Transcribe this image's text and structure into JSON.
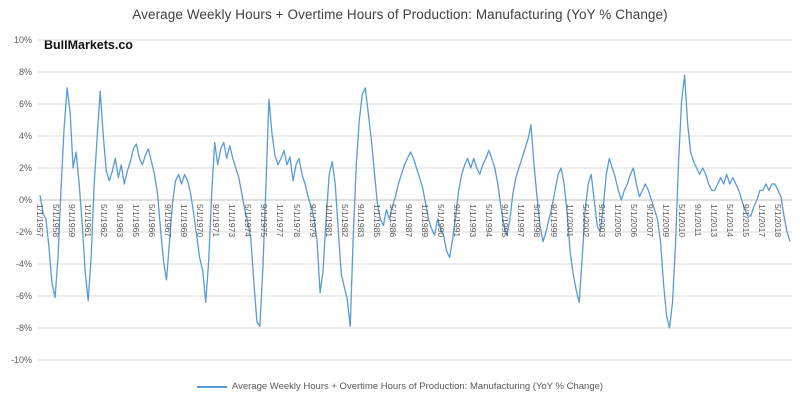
{
  "title": "Average Weekly Hours + Overtime Hours of Production: Manufacturing (YoY % Change)",
  "watermark": "BullMarkets.co",
  "legend": {
    "label": "Average Weekly Hours + Overtime Hours of Production: Manufacturing (YoY % Change)"
  },
  "colors": {
    "line": "#5B9BD5",
    "grid": "#D9D9D9",
    "axis": "#BFBFBF",
    "tick_text": "#595959",
    "title_text": "#404040"
  },
  "chart_data": {
    "type": "line",
    "title": "Average Weekly Hours + Overtime Hours of Production: Manufacturing (YoY % Change)",
    "xlabel": "",
    "ylabel": "",
    "grid": true,
    "legend_position": "bottom",
    "ylim": [
      -10,
      10
    ],
    "xlim": [
      1957.0,
      2019.25
    ],
    "y_ticks": [
      10,
      8,
      6,
      4,
      2,
      0,
      -2,
      -4,
      -6,
      -8,
      -10
    ],
    "y_tick_suffix": "%",
    "x_tick_interval_months": 16,
    "x_tick_labels": [
      "1/1/1957",
      "5/1/1958",
      "9/1/1959",
      "1/1/1961",
      "5/1/1962",
      "9/1/1963",
      "1/1/1965",
      "5/1/1966",
      "9/1/1967",
      "1/1/1969",
      "5/1/1970",
      "9/1/1971",
      "1/1/1973",
      "5/1/1974",
      "9/1/1975",
      "1/1/1977",
      "5/1/1978",
      "9/1/1979",
      "1/1/1981",
      "5/1/1982",
      "9/1/1983",
      "1/1/1985",
      "5/1/1986",
      "9/1/1987",
      "1/1/1989",
      "5/1/1990",
      "9/1/1991",
      "1/1/1993",
      "5/1/1994",
      "9/1/1995",
      "1/1/1997",
      "5/1/1998",
      "9/1/1999",
      "1/1/2001",
      "5/1/2002",
      "9/1/2003",
      "1/1/2005",
      "5/1/2006",
      "9/1/2007",
      "1/1/2009",
      "5/1/2010",
      "9/1/2011",
      "1/1/2013",
      "5/1/2014",
      "9/1/2015",
      "1/1/2017",
      "5/1/2018"
    ],
    "series": [
      {
        "name": "Average Weekly Hours + Overtime Hours of Production: Manufacturing (YoY % Change)",
        "color": "#5B9BD5",
        "x_start": 1957.0,
        "x_step": 0.25,
        "values": [
          0.3,
          -0.8,
          -1.2,
          -3.0,
          -5.2,
          -6.1,
          -3.5,
          0.8,
          4.5,
          7.0,
          5.5,
          2.0,
          3.0,
          1.0,
          -1.5,
          -4.5,
          -6.3,
          -3.5,
          1.0,
          4.0,
          6.8,
          4.0,
          1.8,
          1.2,
          1.8,
          2.6,
          1.4,
          2.2,
          1.0,
          1.8,
          2.4,
          3.2,
          3.5,
          2.6,
          2.2,
          2.8,
          3.2,
          2.4,
          1.6,
          0.4,
          -1.8,
          -3.8,
          -5.0,
          -2.6,
          -0.2,
          1.2,
          1.6,
          1.0,
          1.6,
          1.2,
          0.4,
          -0.8,
          -2.2,
          -3.6,
          -4.4,
          -6.4,
          -3.8,
          0.4,
          3.6,
          2.2,
          3.2,
          3.6,
          2.6,
          3.4,
          2.6,
          2.0,
          1.4,
          0.4,
          -0.6,
          -1.4,
          -2.4,
          -5.2,
          -7.6,
          -7.9,
          -4.2,
          0.8,
          6.3,
          4.2,
          2.8,
          2.2,
          2.6,
          3.1,
          2.2,
          2.7,
          1.2,
          2.2,
          2.6,
          1.6,
          1.0,
          0.2,
          -0.4,
          -1.2,
          -2.6,
          -5.8,
          -4.4,
          -1.2,
          1.6,
          2.4,
          1.0,
          -1.8,
          -4.6,
          -5.4,
          -6.2,
          -7.9,
          -2.2,
          2.2,
          5.0,
          6.6,
          7.0,
          5.4,
          3.8,
          1.8,
          -0.2,
          -1.2,
          -1.6,
          -0.6,
          -1.2,
          -0.4,
          0.2,
          1.0,
          1.6,
          2.2,
          2.6,
          3.0,
          2.6,
          2.0,
          1.4,
          0.8,
          -0.2,
          -1.2,
          -1.8,
          -2.2,
          -1.2,
          -1.8,
          -2.2,
          -3.2,
          -3.6,
          -2.4,
          -1.0,
          0.6,
          1.6,
          2.2,
          2.6,
          2.0,
          2.6,
          2.0,
          1.6,
          2.2,
          2.6,
          3.1,
          2.6,
          2.0,
          1.0,
          -0.4,
          -1.6,
          -2.2,
          -1.2,
          0.4,
          1.4,
          2.0,
          2.6,
          3.2,
          3.8,
          4.7,
          2.2,
          0.2,
          -1.6,
          -2.6,
          -2.0,
          -1.2,
          -0.4,
          0.6,
          1.6,
          2.0,
          1.0,
          -0.8,
          -3.2,
          -4.6,
          -5.6,
          -6.4,
          -3.6,
          -0.6,
          1.0,
          1.6,
          0.0,
          -1.6,
          -2.0,
          -0.4,
          1.6,
          2.6,
          2.0,
          1.4,
          0.6,
          0.0,
          0.6,
          1.0,
          1.6,
          2.0,
          1.0,
          0.2,
          0.6,
          1.0,
          0.6,
          0.0,
          -0.6,
          -1.2,
          -2.6,
          -5.2,
          -7.2,
          -8.0,
          -6.4,
          -2.8,
          2.4,
          6.2,
          7.8,
          4.8,
          3.0,
          2.4,
          2.0,
          1.6,
          2.0,
          1.6,
          1.0,
          0.6,
          0.6,
          1.0,
          1.4,
          1.0,
          1.6,
          1.0,
          1.4,
          1.0,
          0.6,
          0.0,
          -0.6,
          -1.0,
          -1.0,
          -0.4,
          0.0,
          0.6,
          0.6,
          1.0,
          0.6,
          1.0,
          1.0,
          0.6,
          0.2,
          -1.0,
          -2.0,
          -2.6
        ]
      }
    ]
  }
}
